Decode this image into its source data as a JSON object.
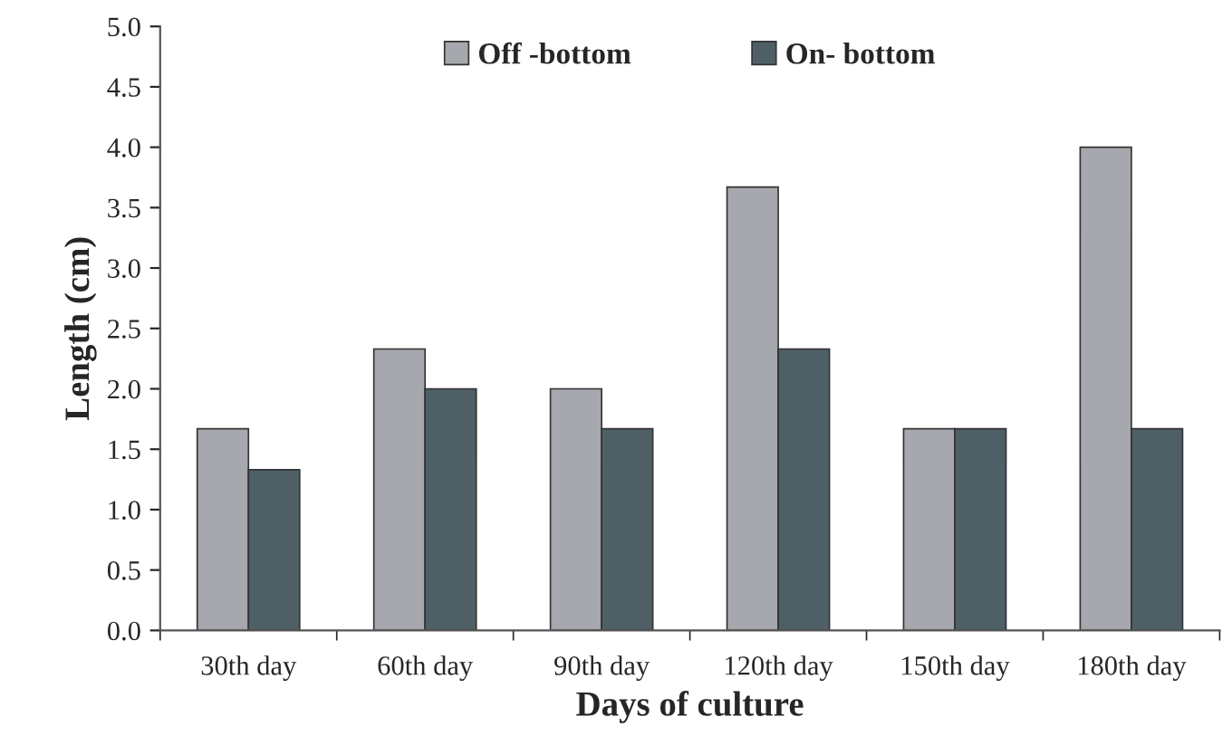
{
  "chart_data": {
    "type": "bar",
    "xlabel": "Days of culture",
    "ylabel": "Length (cm)",
    "categories": [
      "30th day",
      "60th day",
      "90th day",
      "120th day",
      "150th day",
      "180th day"
    ],
    "series": [
      {
        "name": "Off -bottom",
        "color": "#a6a8ad",
        "values": [
          1.67,
          2.33,
          2.0,
          3.67,
          1.67,
          4.0
        ]
      },
      {
        "name": "On- bottom",
        "color": "#4f5f66",
        "values": [
          1.33,
          2.0,
          1.67,
          2.33,
          1.67,
          1.67
        ]
      }
    ],
    "ylim": [
      0,
      5
    ],
    "yticks": [
      {
        "value": 0,
        "label": "0.0"
      },
      {
        "value": 0.5,
        "label": "0.5"
      },
      {
        "value": 1,
        "label": "1.0"
      },
      {
        "value": 1.5,
        "label": "1.5"
      },
      {
        "value": 2,
        "label": "2.0"
      },
      {
        "value": 2.5,
        "label": "2.5"
      },
      {
        "value": 3,
        "label": "3.0"
      },
      {
        "value": 3.5,
        "label": "3.5"
      },
      {
        "value": 4,
        "label": "4.0"
      },
      {
        "value": 4.5,
        "label": "4.5"
      },
      {
        "value": 5,
        "label": "5.0"
      }
    ],
    "grid": false,
    "legend": "top"
  }
}
